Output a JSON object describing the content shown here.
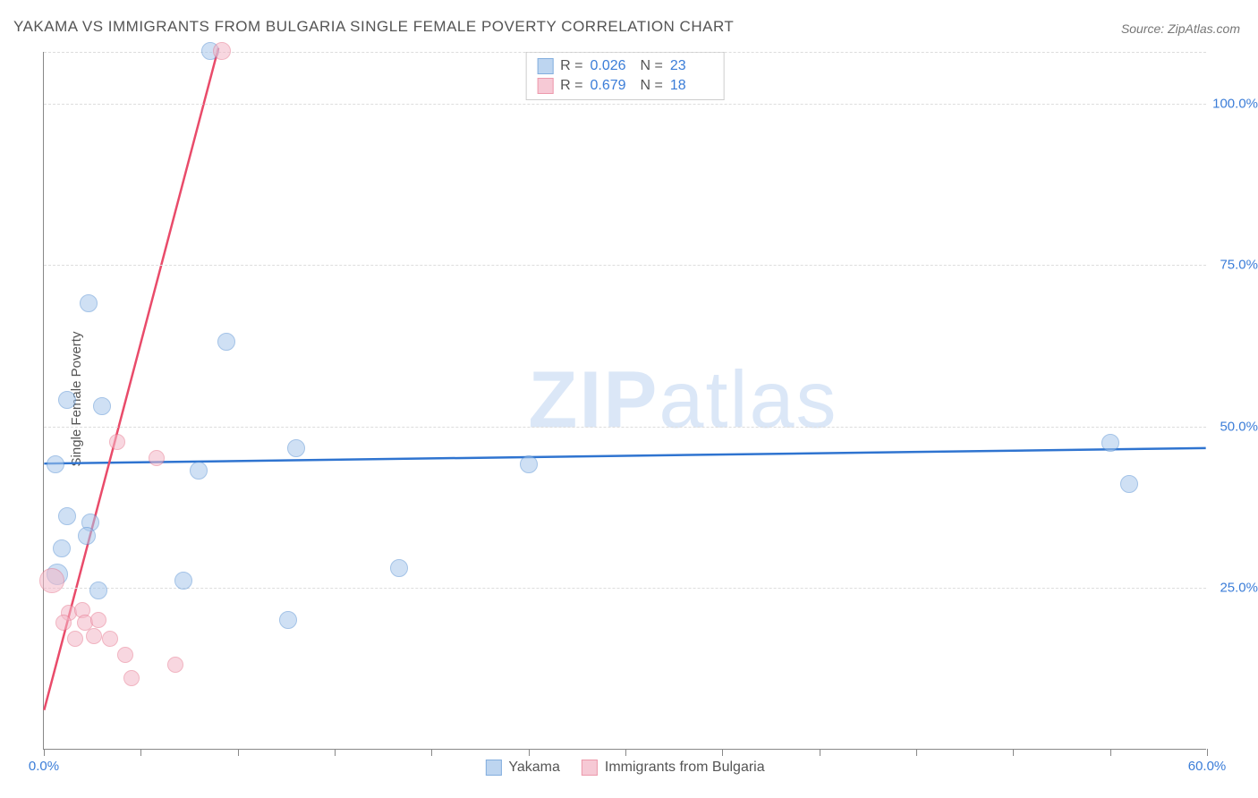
{
  "title": "YAKAMA VS IMMIGRANTS FROM BULGARIA SINGLE FEMALE POVERTY CORRELATION CHART",
  "source": "Source: ZipAtlas.com",
  "ylabel": "Single Female Poverty",
  "watermark_a": "ZIP",
  "watermark_b": "atlas",
  "chart": {
    "type": "scatter",
    "xlim": [
      0,
      60
    ],
    "ylim": [
      0,
      108
    ],
    "x_ticks": [
      0,
      5,
      10,
      15,
      20,
      25,
      30,
      35,
      40,
      45,
      50,
      55,
      60
    ],
    "x_tick_labels": {
      "0": "0.0%",
      "60": "60.0%"
    },
    "y_gridlines": [
      25,
      50,
      75,
      100,
      108
    ],
    "y_tick_labels": {
      "25": "25.0%",
      "50": "50.0%",
      "75": "75.0%",
      "100": "100.0%"
    },
    "background_color": "#ffffff",
    "grid_color": "#dddddd",
    "axis_color": "#888888",
    "series": [
      {
        "name": "Yakama",
        "fill": "#a8c8ec",
        "stroke": "#5a93d4",
        "fill_opacity": 0.55,
        "marker_radius": 10,
        "trend": {
          "color": "#2f74d0",
          "width": 2.5,
          "y_at_x0": 44.2,
          "y_at_x60": 46.6,
          "dashed_beyond_x": 60
        },
        "R": "0.026",
        "N": "23",
        "points": [
          {
            "x": 8.6,
            "y": 108,
            "r": 10
          },
          {
            "x": 2.3,
            "y": 69,
            "r": 10
          },
          {
            "x": 9.4,
            "y": 63,
            "r": 10
          },
          {
            "x": 1.2,
            "y": 54,
            "r": 10
          },
          {
            "x": 3.0,
            "y": 53,
            "r": 10
          },
          {
            "x": 13.0,
            "y": 46.5,
            "r": 10
          },
          {
            "x": 55.0,
            "y": 47.3,
            "r": 10
          },
          {
            "x": 0.6,
            "y": 44,
            "r": 10
          },
          {
            "x": 8.0,
            "y": 43,
            "r": 10
          },
          {
            "x": 25.0,
            "y": 44,
            "r": 10
          },
          {
            "x": 56.0,
            "y": 41,
            "r": 10
          },
          {
            "x": 1.2,
            "y": 36,
            "r": 10
          },
          {
            "x": 2.4,
            "y": 35,
            "r": 10
          },
          {
            "x": 2.2,
            "y": 33,
            "r": 10
          },
          {
            "x": 0.9,
            "y": 31,
            "r": 10
          },
          {
            "x": 18.3,
            "y": 28,
            "r": 10
          },
          {
            "x": 0.7,
            "y": 27,
            "r": 12
          },
          {
            "x": 7.2,
            "y": 26,
            "r": 10
          },
          {
            "x": 2.8,
            "y": 24.5,
            "r": 10
          },
          {
            "x": 12.6,
            "y": 20,
            "r": 10
          }
        ]
      },
      {
        "name": "Immigrants from Bulgaria",
        "fill": "#f4b8c8",
        "stroke": "#e6788f",
        "fill_opacity": 0.55,
        "marker_radius": 9,
        "trend": {
          "color": "#e94b6a",
          "width": 2.5,
          "y_at_x0": 6,
          "y_at_x60": 690,
          "dashed_beyond_x": 9.0
        },
        "R": "0.679",
        "N": "18",
        "points": [
          {
            "x": 9.2,
            "y": 108,
            "r": 10
          },
          {
            "x": 3.8,
            "y": 47.5,
            "r": 9
          },
          {
            "x": 5.8,
            "y": 45,
            "r": 9
          },
          {
            "x": 0.4,
            "y": 26,
            "r": 14
          },
          {
            "x": 1.3,
            "y": 21,
            "r": 9
          },
          {
            "x": 2.0,
            "y": 21.5,
            "r": 9
          },
          {
            "x": 1.0,
            "y": 19.5,
            "r": 9
          },
          {
            "x": 2.1,
            "y": 19.5,
            "r": 9
          },
          {
            "x": 2.8,
            "y": 20,
            "r": 9
          },
          {
            "x": 2.6,
            "y": 17.5,
            "r": 9
          },
          {
            "x": 1.6,
            "y": 17,
            "r": 9
          },
          {
            "x": 3.4,
            "y": 17,
            "r": 9
          },
          {
            "x": 4.2,
            "y": 14.5,
            "r": 9
          },
          {
            "x": 6.8,
            "y": 13,
            "r": 9
          },
          {
            "x": 4.5,
            "y": 11,
            "r": 9
          }
        ]
      }
    ],
    "stats_box": {
      "r_label": "R =",
      "n_label": "N ="
    },
    "bottom_legend": {}
  }
}
